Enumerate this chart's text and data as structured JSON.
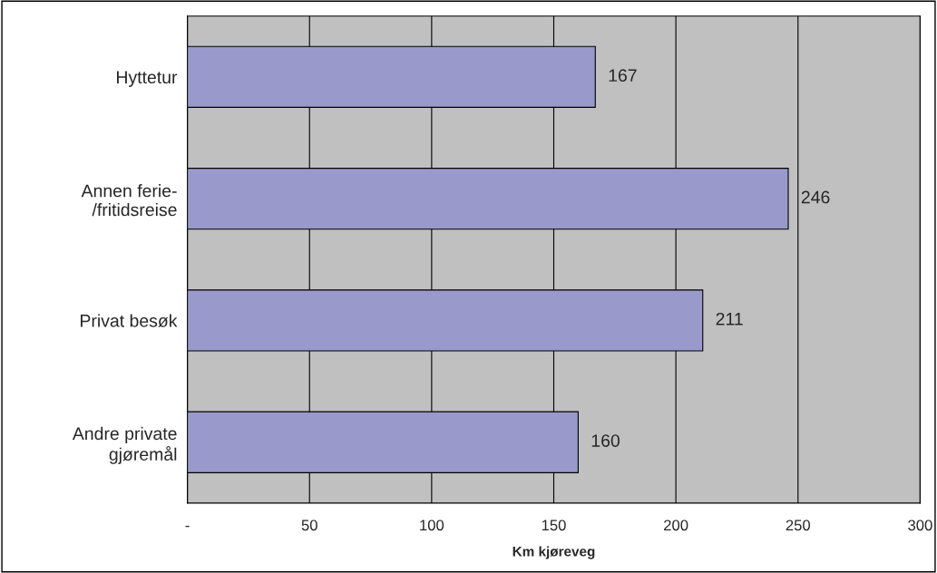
{
  "chart_data": {
    "type": "bar",
    "orientation": "horizontal",
    "categories": [
      "Hyttetur",
      "Annen ferie-\n/fritidsreise",
      "Privat besøk",
      "Andre private\ngjøremål"
    ],
    "values": [
      167,
      246,
      211,
      160
    ],
    "color": "#9999cc",
    "xlabel": "Km kjøreveg",
    "xlim": [
      0,
      300
    ],
    "xticks": [
      {
        "value": 0,
        "label": "-"
      },
      50,
      100,
      150,
      200,
      250,
      300
    ],
    "grid": "x",
    "data_labels": true
  }
}
